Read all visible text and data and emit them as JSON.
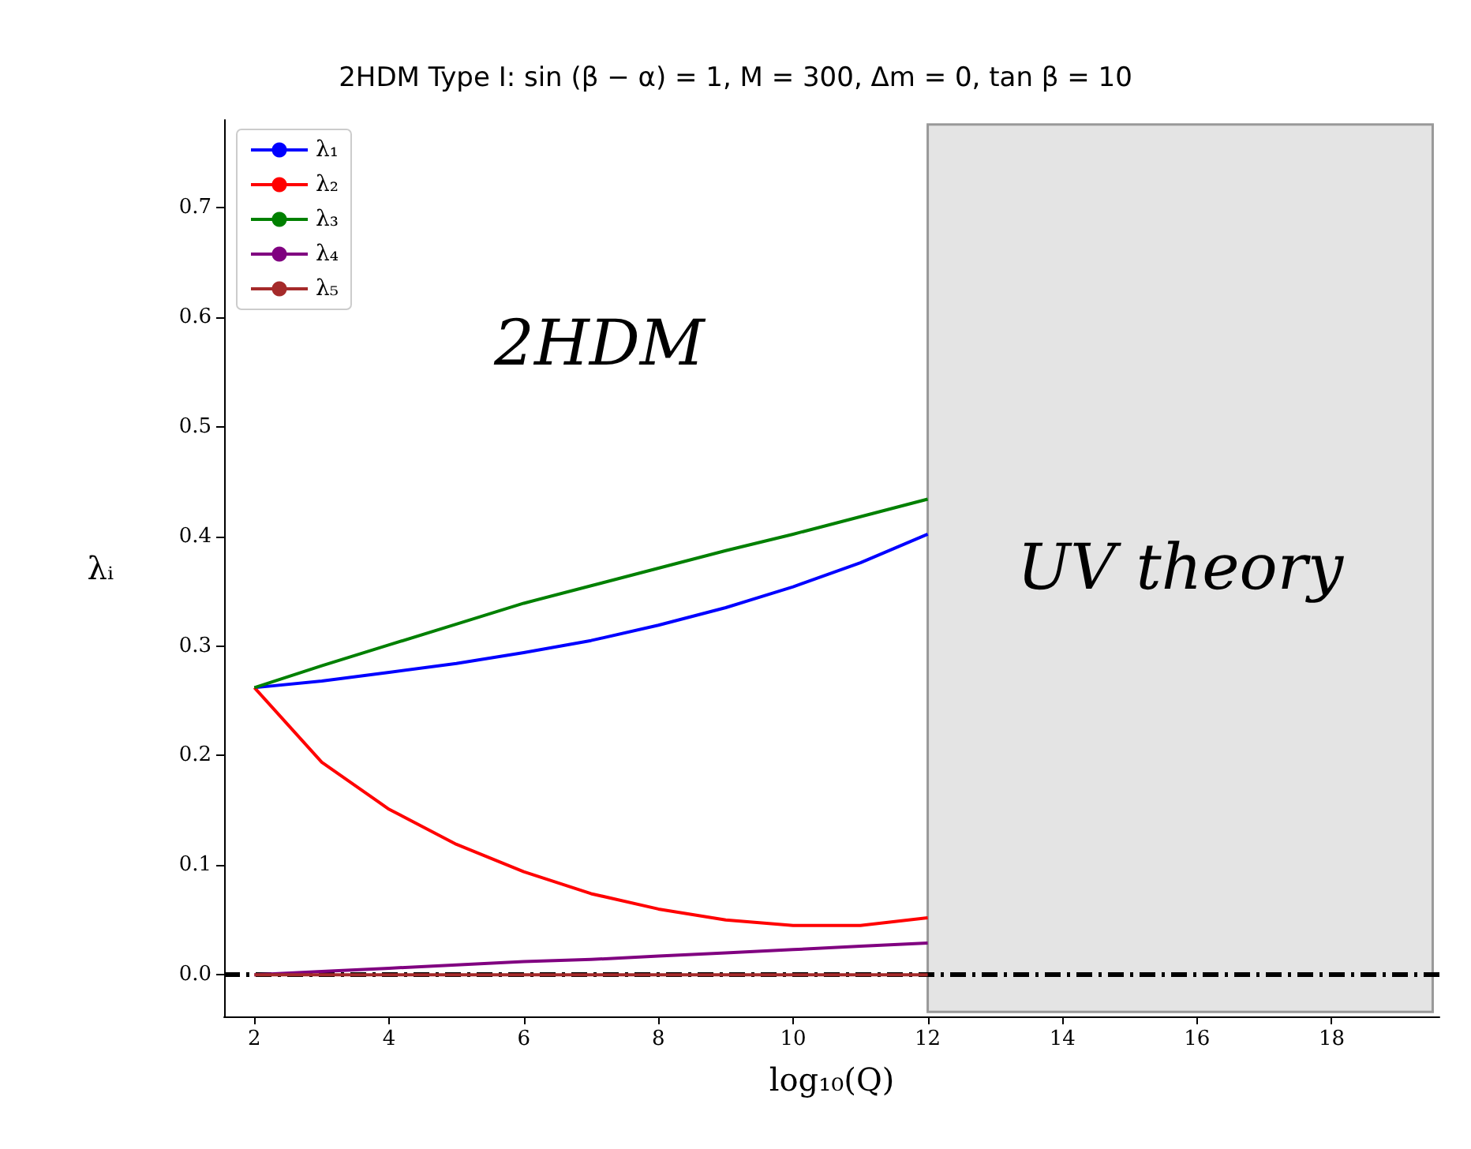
{
  "chart_data": {
    "type": "line",
    "title": "2HDM Type I: sin (β − α) = 1, M = 300, Δm = 0, tan β = 10",
    "xlabel": "log₁₀(Q)",
    "ylabel": "λᵢ",
    "x": [
      2,
      3,
      4,
      5,
      6,
      7,
      8,
      9,
      10,
      11,
      12
    ],
    "series": [
      {
        "name": "λ₁",
        "color": "#0000ff",
        "values": [
          0.262,
          0.268,
          0.276,
          0.284,
          0.294,
          0.305,
          0.319,
          0.335,
          0.354,
          0.376,
          0.402
        ]
      },
      {
        "name": "λ₂",
        "color": "#ff0000",
        "values": [
          0.262,
          0.194,
          0.151,
          0.119,
          0.094,
          0.074,
          0.06,
          0.05,
          0.045,
          0.045,
          0.052
        ]
      },
      {
        "name": "λ₃",
        "color": "#008000",
        "values": [
          0.262,
          0.282,
          0.301,
          0.32,
          0.339,
          0.355,
          0.371,
          0.387,
          0.402,
          0.418,
          0.434
        ]
      },
      {
        "name": "λ₄",
        "color": "#800080",
        "values": [
          0,
          0.003,
          0.006,
          0.009,
          0.012,
          0.014,
          0.017,
          0.02,
          0.023,
          0.026,
          0.029
        ]
      },
      {
        "name": "λ₅",
        "color": "#a52a2a",
        "values": [
          0,
          0,
          0,
          0,
          0,
          0,
          0,
          0,
          0,
          0,
          0
        ]
      }
    ],
    "xlim": [
      1.55,
      19.6
    ],
    "ylim": [
      -0.038,
      0.78
    ],
    "xticks": [
      2,
      4,
      6,
      8,
      10,
      12,
      14,
      16,
      18
    ],
    "yticks": [
      {
        "value": 0,
        "label": "0.0"
      },
      0.1,
      0.2,
      0.3,
      0.4,
      0.5,
      0.6,
      0.7
    ],
    "ref_lines": [
      {
        "axis": "y",
        "value": 0,
        "color": "#000000",
        "line_style": "dashed"
      }
    ],
    "bands": [
      {
        "axis": "x",
        "from": 12,
        "to": 19.5,
        "label": "UV theory",
        "color": "#e4e4e4"
      }
    ],
    "annotations": [
      "2HDM"
    ],
    "legend": "top left",
    "grid": false,
    "line_style": "solid",
    "marker": "none"
  }
}
